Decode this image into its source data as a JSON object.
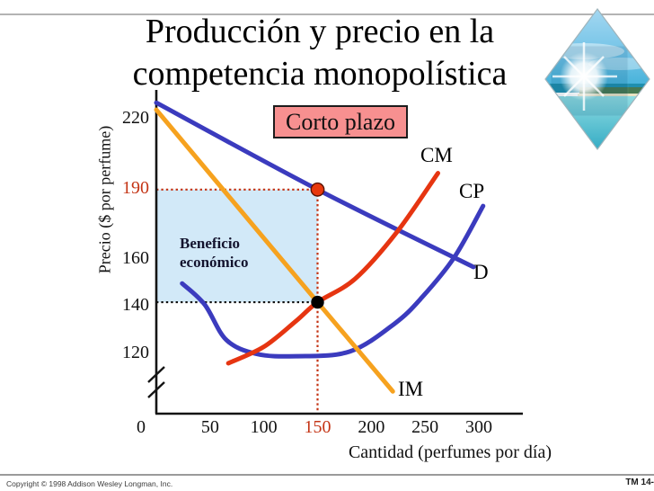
{
  "slide": {
    "title_line1": "Producción y precio en la",
    "title_line2": "competencia monopolística",
    "footer_copyright": "Copyright © 1998 Addison Wesley Longman, Inc.",
    "footer_tm": "TM 14-"
  },
  "chart_data": {
    "type": "line",
    "title": "Corto plazo",
    "xlabel": "Cantidad (perfumes por día)",
    "ylabel": "Precio ($ por perfume)",
    "x_ticks": [
      50,
      100,
      150,
      200,
      250,
      300
    ],
    "x_origin_label": "0",
    "y_ticks": [
      220,
      190,
      160,
      140,
      120
    ],
    "highlight_ticks": {
      "x": 150,
      "y": 190
    },
    "xlim": [
      0,
      340
    ],
    "ylim_shown": [
      95,
      230
    ],
    "axis_break_on_y": true,
    "grid": false,
    "colors": {
      "axis": "#141414",
      "tick_highlight": "#C43415",
      "dotted_red": "#C43415",
      "dotted_black": "#111111",
      "profit_fill": "#D2E9F8",
      "badge_fill": "#F79090"
    },
    "series": [
      {
        "name": "D",
        "color": "#3B3BBE",
        "points": [
          [
            0,
            227
          ],
          [
            150,
            190
          ],
          [
            295,
            157
          ]
        ]
      },
      {
        "name": "IM",
        "color": "#F6A21F",
        "points": [
          [
            0,
            224
          ],
          [
            150,
            142
          ],
          [
            220,
            104
          ]
        ]
      },
      {
        "name": "CM",
        "color": "#E63511",
        "points": [
          [
            67,
            116
          ],
          [
            100,
            123
          ],
          [
            130,
            134
          ],
          [
            150,
            142
          ],
          [
            185,
            152
          ],
          [
            224,
            172
          ],
          [
            262,
            197
          ]
        ]
      },
      {
        "name": "CP",
        "color": "#3B3BBE",
        "points": [
          [
            24,
            150
          ],
          [
            45,
            141
          ],
          [
            65,
            126
          ],
          [
            93,
            120
          ],
          [
            130,
            119
          ],
          [
            180,
            121
          ],
          [
            222,
            133
          ],
          [
            247,
            144
          ],
          [
            277,
            161
          ],
          [
            304,
            183
          ]
        ]
      }
    ],
    "markers": [
      {
        "label": "price-on-demand",
        "x": 150,
        "y": 190,
        "fill": "#E8380D",
        "stroke": "#5a1200"
      },
      {
        "label": "mc-equals-mr",
        "x": 150,
        "y": 142,
        "fill": "#000000",
        "stroke": "none"
      }
    ],
    "guides": [
      {
        "type": "h",
        "y": 190,
        "to_x": 150,
        "color": "#C43415"
      },
      {
        "type": "v",
        "x": 150,
        "from_y": 190,
        "color": "#C43415"
      },
      {
        "type": "h",
        "y": 142,
        "to_x": 150,
        "color": "#111111"
      }
    ],
    "profit_region": {
      "label": "Beneficio económico",
      "x": [
        0,
        150
      ],
      "y": [
        142,
        190
      ],
      "fill": "#D2E9F8"
    }
  }
}
